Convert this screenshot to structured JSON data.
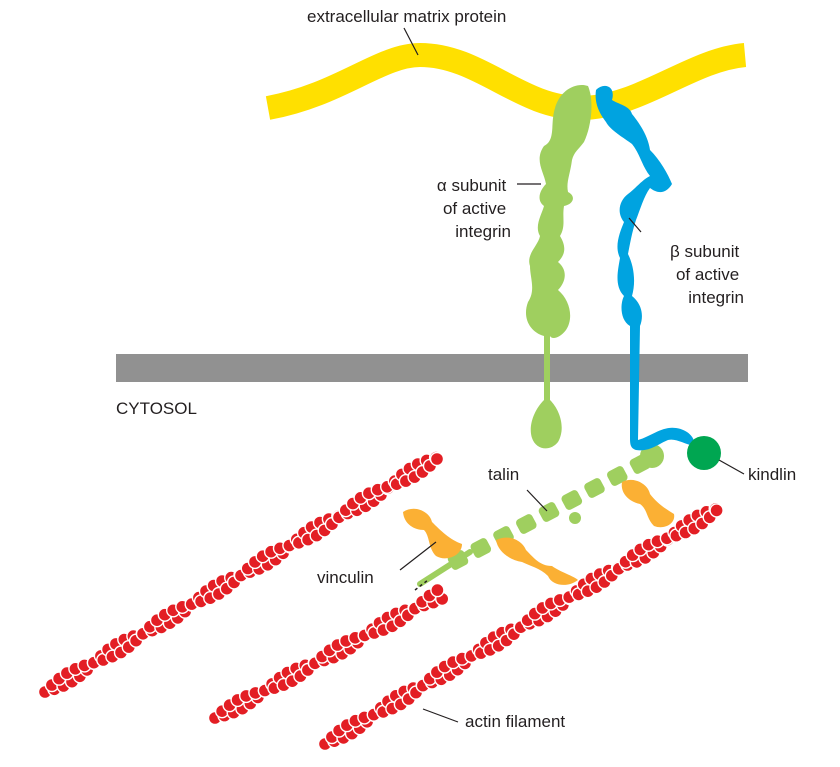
{
  "labels": {
    "ecm": "extracellular matrix protein",
    "alpha": [
      "α subunit",
      "of active",
      "integrin"
    ],
    "beta": [
      "β subunit",
      "of active",
      "integrin"
    ],
    "cytosol": "CYTOSOL",
    "talin": "talin",
    "kindlin": "kindlin",
    "vinculin": "vinculin",
    "actin": "actin filament"
  },
  "colors": {
    "ecm": "#ffe000",
    "alpha": "#9fcf5f",
    "beta": "#00a3e0",
    "membrane": "#919191",
    "kindlin": "#00a651",
    "vinculin": "#fbb034",
    "actin": "#e31e24",
    "talin": "#9fcf5f"
  }
}
